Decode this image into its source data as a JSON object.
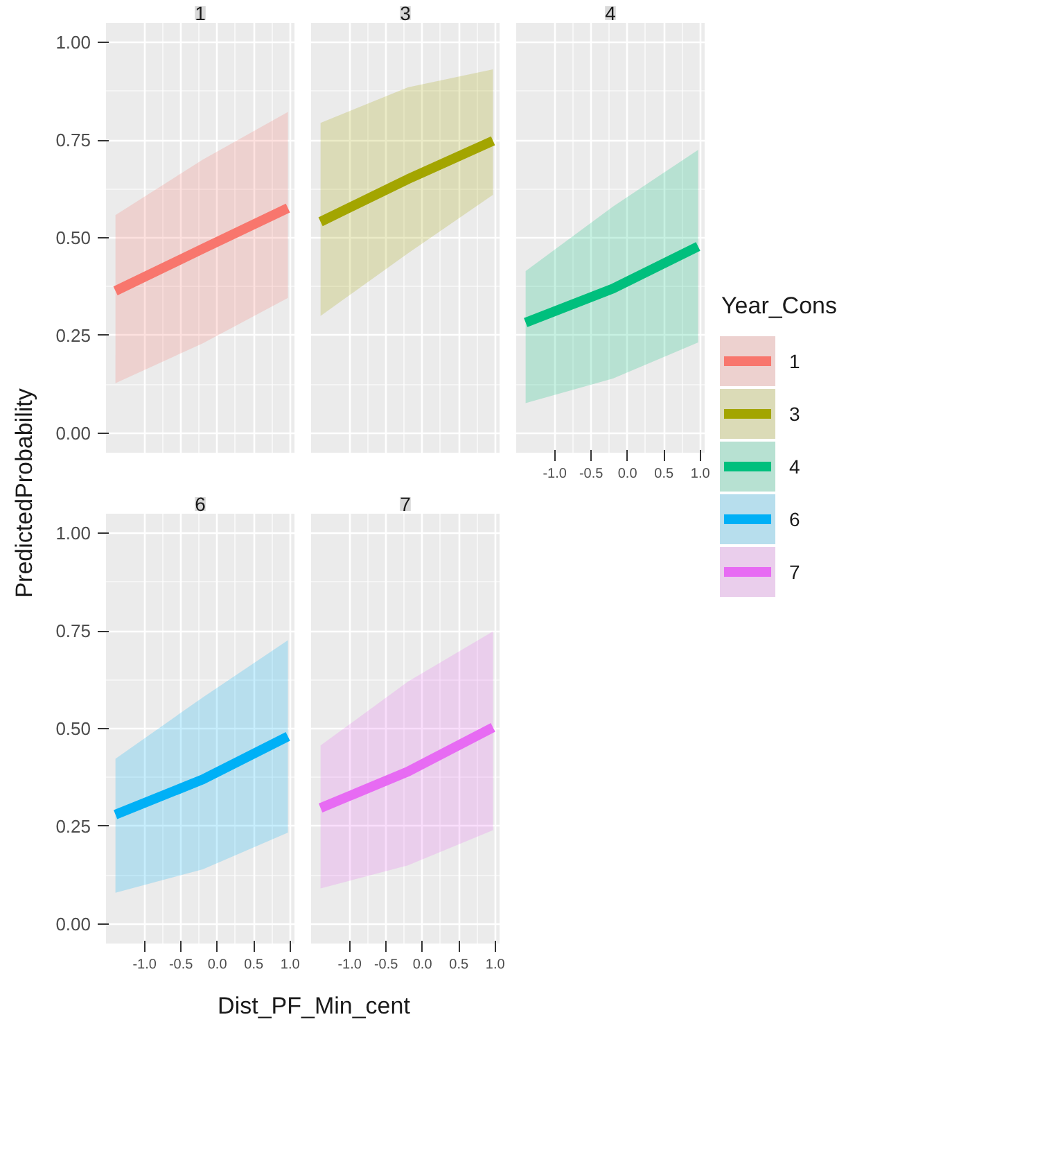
{
  "chart_data": [
    {
      "type": "line",
      "title": "1",
      "ylabel": "PredictedProbability",
      "xlim": [
        -1.53,
        1.06
      ],
      "ylim": [
        -0.05,
        1.05
      ],
      "grid": true,
      "legend": "right",
      "tick_labels": "y",
      "xticks": [
        -1,
        -0.5,
        0,
        0.5,
        1
      ],
      "yticks": [
        {
          "value": 0,
          "label": "0.00"
        },
        {
          "value": 0.25,
          "label": "0.25"
        },
        {
          "value": 0.5,
          "label": "0.50"
        },
        {
          "value": 0.75,
          "label": "0.75"
        },
        {
          "value": 1,
          "label": "1.00"
        }
      ],
      "x": [
        -1.4,
        -0.2,
        0.97
      ],
      "series": [
        {
          "name": "1",
          "color": "#f8766d",
          "values": [
            0.364,
            0.472,
            0.576
          ],
          "lower": [
            0.128,
            0.23,
            0.346
          ],
          "upper": [
            0.558,
            0.7,
            0.822
          ]
        }
      ]
    },
    {
      "type": "line",
      "title": "3",
      "xlim": [
        -1.53,
        1.06
      ],
      "ylim": [
        -0.05,
        1.05
      ],
      "grid": true,
      "legend": "right",
      "tick_labels": false,
      "xticks": [
        -1,
        -0.5,
        0,
        0.5,
        1
      ],
      "yticks": [
        0,
        0.25,
        0.5,
        0.75,
        1
      ],
      "x": [
        -1.4,
        -0.2,
        0.97
      ],
      "series": [
        {
          "name": "3",
          "color": "#a3a500",
          "values": [
            0.541,
            0.65,
            0.748
          ],
          "lower": [
            0.3,
            0.46,
            0.61
          ],
          "upper": [
            0.794,
            0.885,
            0.931
          ]
        }
      ]
    },
    {
      "type": "line",
      "title": "4",
      "legend_title": "Year_Cons",
      "xlim": [
        -1.53,
        1.06
      ],
      "ylim": [
        -0.05,
        1.05
      ],
      "grid": true,
      "legend": "right",
      "tick_labels": "x",
      "xticks": [
        {
          "value": -1,
          "label": "-1.0"
        },
        {
          "value": -0.5,
          "label": "-0.5"
        },
        {
          "value": 0,
          "label": "0.0"
        },
        {
          "value": 0.5,
          "label": "0.5"
        },
        {
          "value": 1,
          "label": "1.0"
        }
      ],
      "yticks": [
        0,
        0.25,
        0.5,
        0.75,
        1
      ],
      "x": [
        -1.4,
        -0.2,
        0.97
      ],
      "series": [
        {
          "name": "4",
          "color": "#00bf7d",
          "values": [
            0.283,
            0.37,
            0.478
          ],
          "lower": [
            0.077,
            0.14,
            0.232
          ],
          "upper": [
            0.415,
            0.58,
            0.725
          ]
        }
      ]
    },
    {
      "type": "line",
      "title": "6",
      "xlabel": "Dist_PF_Min_cent",
      "xlim": [
        -1.53,
        1.06
      ],
      "ylim": [
        -0.05,
        1.05
      ],
      "grid": true,
      "legend": "right",
      "xticks": [
        {
          "value": -1,
          "label": "-1.0"
        },
        {
          "value": -0.5,
          "label": "-0.5"
        },
        {
          "value": 0,
          "label": "0.0"
        },
        {
          "value": 0.5,
          "label": "0.5"
        },
        {
          "value": 1,
          "label": "1.0"
        }
      ],
      "yticks": [
        {
          "value": 0,
          "label": "0.00"
        },
        {
          "value": 0.25,
          "label": "0.25"
        },
        {
          "value": 0.5,
          "label": "0.50"
        },
        {
          "value": 0.75,
          "label": "0.75"
        },
        {
          "value": 1,
          "label": "1.00"
        }
      ],
      "x": [
        -1.4,
        -0.2,
        0.97
      ],
      "series": [
        {
          "name": "6",
          "color": "#00b0f6",
          "values": [
            0.28,
            0.37,
            0.48
          ],
          "lower": [
            0.08,
            0.14,
            0.234
          ],
          "upper": [
            0.423,
            0.58,
            0.726
          ]
        }
      ]
    },
    {
      "type": "line",
      "title": "7",
      "xlim": [
        -1.53,
        1.06
      ],
      "ylim": [
        -0.05,
        1.05
      ],
      "grid": true,
      "legend": "right",
      "tick_labels": "x",
      "xticks": [
        {
          "value": -1,
          "label": "-1.0"
        },
        {
          "value": -0.5,
          "label": "-0.5"
        },
        {
          "value": 0,
          "label": "0.0"
        },
        {
          "value": 0.5,
          "label": "0.5"
        },
        {
          "value": 1,
          "label": "1.0"
        }
      ],
      "yticks": [
        0,
        0.25,
        0.5,
        0.75,
        1
      ],
      "x": [
        -1.4,
        -0.2,
        0.97
      ],
      "series": [
        {
          "name": "7",
          "color": "#e76bf3",
          "values": [
            0.297,
            0.39,
            0.503
          ],
          "lower": [
            0.091,
            0.15,
            0.24
          ],
          "upper": [
            0.457,
            0.62,
            0.749
          ]
        }
      ]
    }
  ]
}
